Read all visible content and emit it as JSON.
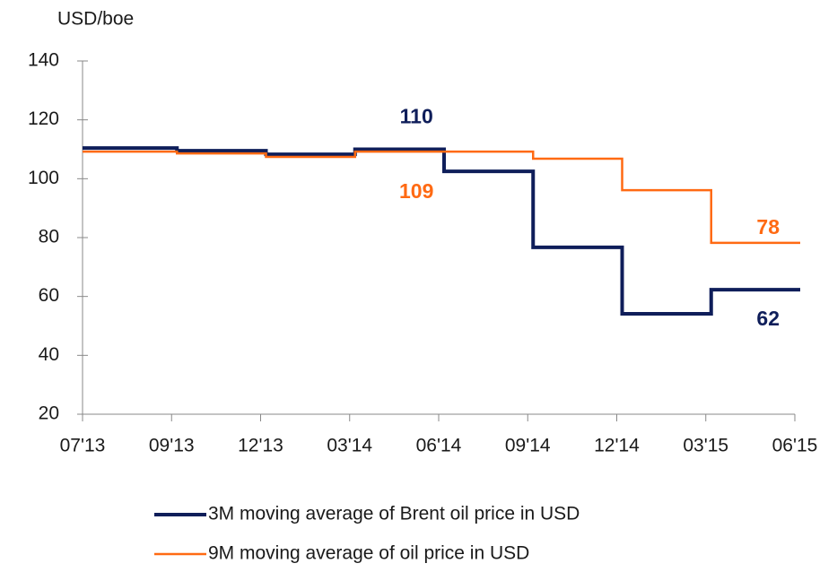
{
  "chart_data": {
    "type": "line",
    "step": "post",
    "y_axis_label": "USD/boe",
    "categories": [
      "07'13",
      "09'13",
      "12'13",
      "03'14",
      "06'14",
      "09'14",
      "12'14",
      "03'15",
      "06'15"
    ],
    "ylim": [
      20,
      140
    ],
    "yticks": [
      20,
      40,
      60,
      80,
      100,
      120,
      140
    ],
    "legend": "bottom",
    "series": [
      {
        "name": "3M moving average of Brent oil price in USD",
        "color": "#0f1e5a",
        "values": [
          110.4,
          109.5,
          108.3,
          110,
          102.5,
          76.7,
          54.1,
          62.3,
          62.3
        ],
        "value_labels": [
          null,
          null,
          null,
          "110",
          null,
          null,
          null,
          null,
          "62"
        ]
      },
      {
        "name": "9M moving average of oil price in USD",
        "color": "#ff6a13",
        "values": [
          109.2,
          108.6,
          107.4,
          109.2,
          109.2,
          106.8,
          96.1,
          78.2,
          78.2
        ],
        "value_labels": [
          null,
          null,
          null,
          null,
          "109",
          null,
          null,
          null,
          "78"
        ]
      }
    ]
  }
}
